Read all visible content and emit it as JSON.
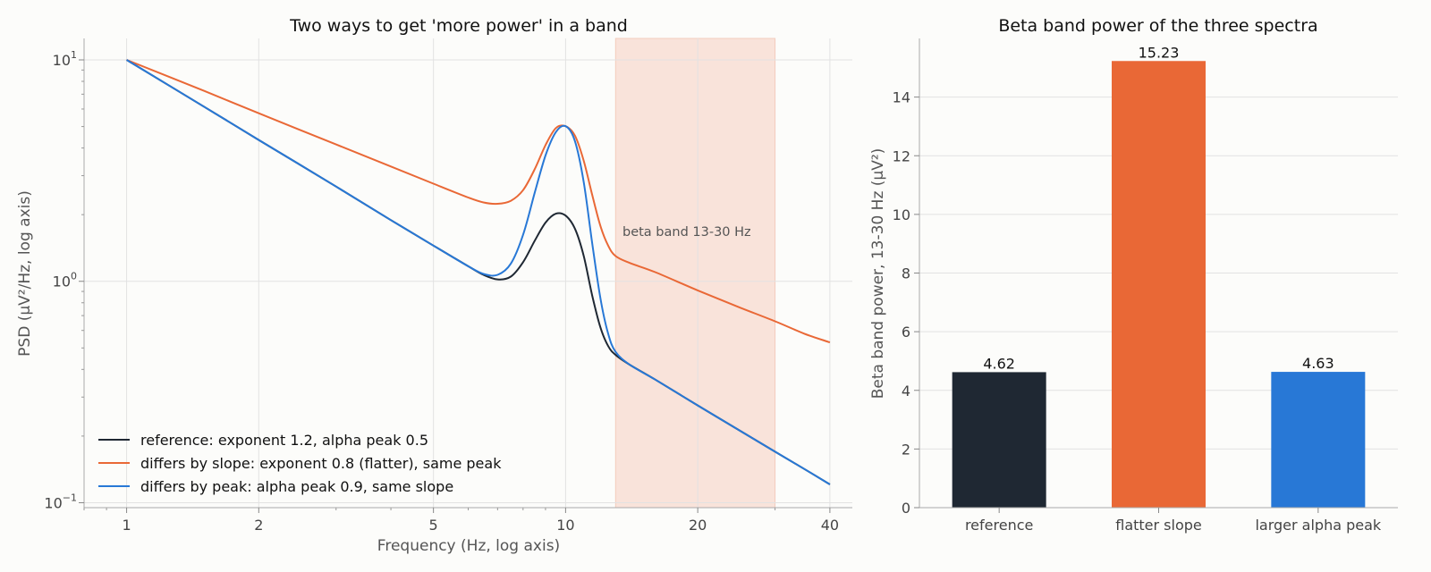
{
  "chart_data": [
    {
      "type": "line",
      "title": "Two ways to get 'more power' in a band",
      "xlabel": "Frequency (Hz, log axis)",
      "ylabel": "PSD (µV²/Hz, log axis)",
      "xscale": "log",
      "yscale": "log",
      "xlim": [
        0.8,
        45
      ],
      "ylim": [
        0.095,
        12.5
      ],
      "xticks": [
        1,
        2,
        5,
        10,
        20,
        40
      ],
      "yticks": [
        {
          "value": 10,
          "base": "10",
          "exp": "1"
        },
        {
          "value": 1,
          "base": "10",
          "exp": "0"
        },
        {
          "value": 0.1,
          "base": "10",
          "exp": "−1"
        }
      ],
      "grid": true,
      "legend_position": "lower-left",
      "shaded_region": {
        "x": [
          13,
          30
        ],
        "label": "beta band 13-30 Hz",
        "color": "#f9e3da"
      },
      "x": [
        1,
        1.5,
        2,
        3,
        4,
        5,
        6,
        6.5,
        7,
        7.5,
        8,
        8.5,
        9,
        9.5,
        10,
        10.5,
        11,
        11.5,
        12,
        12.5,
        13,
        14,
        16,
        20,
        25,
        30,
        35,
        40
      ],
      "series": [
        {
          "name": "reference: exponent 1.2, alpha peak 0.5",
          "color": "#1f2833",
          "values": [
            10.0,
            6.15,
            4.35,
            2.68,
            1.89,
            1.45,
            1.17,
            1.07,
            1.02,
            1.05,
            1.22,
            1.52,
            1.84,
            2.02,
            1.98,
            1.73,
            1.3,
            0.86,
            0.62,
            0.51,
            0.465,
            0.42,
            0.36,
            0.275,
            0.211,
            0.17,
            0.142,
            0.121
          ]
        },
        {
          "name": "differs by slope: exponent 0.8 (flatter), same peak",
          "color": "#e96836",
          "values": [
            10.0,
            7.25,
            5.74,
            4.15,
            3.3,
            2.76,
            2.39,
            2.27,
            2.24,
            2.31,
            2.58,
            3.2,
            4.12,
            4.92,
            5.02,
            4.55,
            3.5,
            2.45,
            1.78,
            1.45,
            1.3,
            1.21,
            1.1,
            0.91,
            0.76,
            0.66,
            0.58,
            0.53
          ]
        },
        {
          "name": "differs by peak: alpha peak 0.9, same slope",
          "color": "#2878d6",
          "values": [
            10.0,
            6.15,
            4.35,
            2.68,
            1.89,
            1.45,
            1.17,
            1.08,
            1.07,
            1.2,
            1.62,
            2.5,
            3.7,
            4.72,
            5.02,
            4.3,
            2.8,
            1.48,
            0.84,
            0.58,
            0.48,
            0.42,
            0.36,
            0.275,
            0.211,
            0.17,
            0.142,
            0.121
          ]
        }
      ]
    },
    {
      "type": "bar",
      "title": "Beta band power of the three spectra",
      "xlabel": "",
      "ylabel": "Beta band power, 13-30 Hz (µV²)",
      "categories": [
        "reference",
        "flatter slope",
        "larger alpha peak"
      ],
      "values": [
        4.62,
        15.23,
        4.63
      ],
      "value_labels": [
        "4.62",
        "15.23",
        "4.63"
      ],
      "colors": [
        "#1f2833",
        "#e96836",
        "#2878d6"
      ],
      "ylim": [
        0,
        16
      ],
      "yticks": [
        0,
        2,
        4,
        6,
        8,
        10,
        12,
        14
      ],
      "grid": true
    }
  ]
}
